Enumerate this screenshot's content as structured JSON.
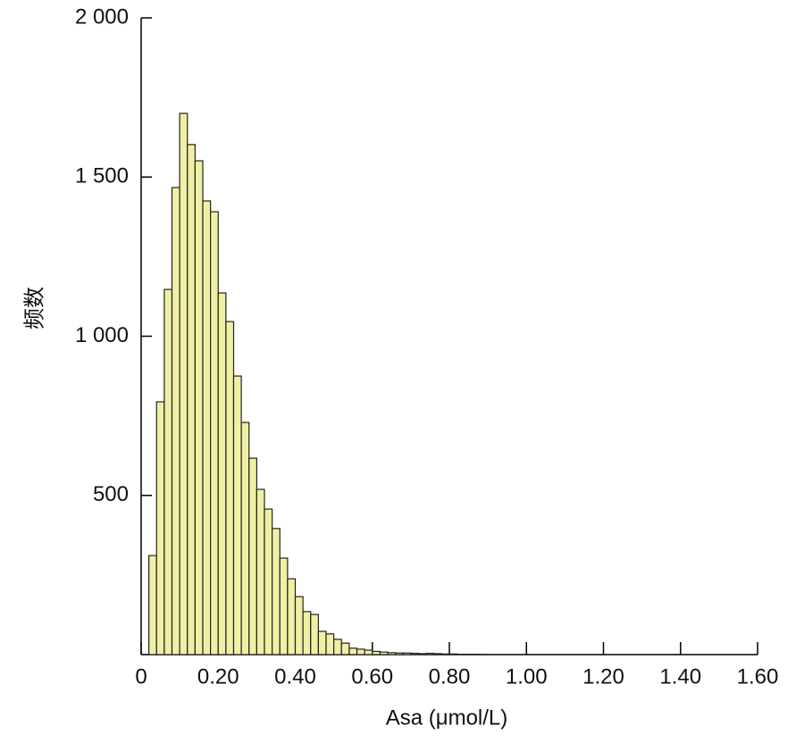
{
  "chart_data": {
    "type": "histogram",
    "x_label": "Asa (μmol/L)",
    "y_label": "频数",
    "bins": [
      0.02,
      0.04,
      0.06,
      0.08,
      0.1,
      0.12,
      0.14,
      0.16,
      0.18,
      0.2,
      0.22,
      0.24,
      0.26,
      0.28,
      0.3,
      0.32,
      0.34,
      0.36,
      0.38,
      0.4,
      0.42,
      0.44,
      0.46,
      0.48,
      0.5,
      0.52,
      0.54,
      0.56,
      0.58,
      0.6,
      0.62,
      0.64,
      0.66,
      0.68,
      0.7,
      0.72,
      0.74,
      0.76,
      0.78,
      0.8,
      0.82,
      0.84,
      0.86,
      0.88
    ],
    "values": [
      311,
      794,
      1147,
      1467,
      1700,
      1602,
      1551,
      1425,
      1391,
      1136,
      1046,
      875,
      729,
      617,
      519,
      457,
      396,
      303,
      238,
      182,
      135,
      126,
      73,
      65,
      48,
      36,
      20,
      17,
      14,
      10,
      8,
      6,
      5,
      5,
      4,
      3,
      4,
      3,
      2,
      2,
      1,
      1,
      1
    ],
    "color": "#f0f0a4",
    "xlim": [
      0,
      1.6
    ],
    "xticks": [
      0,
      {
        "value": 0.2,
        "label": "0.20"
      },
      {
        "value": 0.4,
        "label": "0.40"
      },
      {
        "value": 0.6,
        "label": "0.60"
      },
      {
        "value": 0.8,
        "label": "0.80"
      },
      {
        "value": 1.0,
        "label": "1.00"
      },
      {
        "value": 1.2,
        "label": "1.20"
      },
      {
        "value": 1.4,
        "label": "1.40"
      },
      {
        "value": 1.6,
        "label": "1.60"
      }
    ],
    "ylim": [
      0,
      2000
    ],
    "yticks": [
      500,
      {
        "value": 1000,
        "label": "1 000"
      },
      {
        "value": 1500,
        "label": "1 500"
      },
      {
        "value": 2000,
        "label": "2 000"
      }
    ]
  }
}
